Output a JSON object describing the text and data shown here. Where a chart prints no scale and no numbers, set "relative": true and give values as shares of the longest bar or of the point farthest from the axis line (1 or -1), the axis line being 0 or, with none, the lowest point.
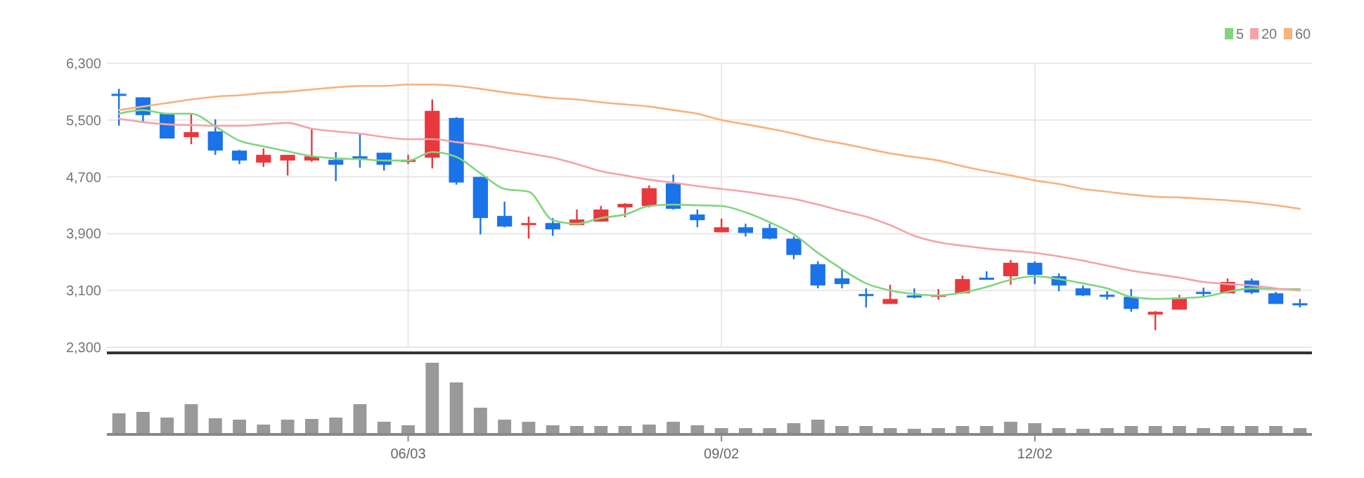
{
  "chart_data": [
    {
      "type": "candlestick",
      "categories": [
        null,
        null,
        null,
        null,
        null,
        null,
        null,
        null,
        null,
        null,
        null,
        null,
        null,
        null,
        null,
        null,
        null,
        null,
        null,
        null,
        null,
        null,
        null,
        null,
        null,
        null,
        null,
        null,
        null,
        null,
        null,
        null,
        null,
        null,
        null,
        null,
        null,
        null,
        null,
        null,
        null,
        null,
        null,
        null,
        null,
        null,
        null,
        null,
        null,
        null
      ],
      "ohlc": [
        [
          5870,
          5940,
          5420,
          5850
        ],
        [
          5820,
          5820,
          5470,
          5570
        ],
        [
          5590,
          5590,
          5240,
          5240
        ],
        [
          5260,
          5590,
          5160,
          5330
        ],
        [
          5340,
          5510,
          5010,
          5070
        ],
        [
          5070,
          5080,
          4880,
          4930
        ],
        [
          4900,
          5100,
          4840,
          5010
        ],
        [
          4930,
          5010,
          4720,
          5010
        ],
        [
          4930,
          5380,
          4910,
          4990
        ],
        [
          4940,
          5050,
          4640,
          4870
        ],
        [
          4990,
          5310,
          4830,
          4950
        ],
        [
          5040,
          5040,
          4790,
          4870
        ],
        [
          4930,
          5010,
          4880,
          4940
        ],
        [
          4970,
          5790,
          4820,
          5630
        ],
        [
          5530,
          5540,
          4590,
          4620
        ],
        [
          4700,
          4700,
          3890,
          4120
        ],
        [
          4150,
          4350,
          3990,
          4000
        ],
        [
          4040,
          4140,
          3830,
          4050
        ],
        [
          4050,
          4120,
          3870,
          3960
        ],
        [
          4020,
          4240,
          4020,
          4100
        ],
        [
          4070,
          4290,
          4070,
          4240
        ],
        [
          4270,
          4330,
          4130,
          4320
        ],
        [
          4290,
          4580,
          4270,
          4540
        ],
        [
          4610,
          4730,
          4240,
          4250
        ],
        [
          4170,
          4240,
          3990,
          4090
        ],
        [
          3920,
          4110,
          3920,
          3990
        ],
        [
          3990,
          4040,
          3860,
          3910
        ],
        [
          3980,
          4040,
          3820,
          3830
        ],
        [
          3830,
          3860,
          3540,
          3600
        ],
        [
          3470,
          3510,
          3130,
          3170
        ],
        [
          3270,
          3410,
          3130,
          3190
        ],
        [
          3050,
          3130,
          2860,
          3040
        ],
        [
          2910,
          3180,
          2910,
          2980
        ],
        [
          3030,
          3130,
          2990,
          3000
        ],
        [
          3030,
          3120,
          2970,
          3040
        ],
        [
          3060,
          3310,
          3060,
          3260
        ],
        [
          3280,
          3370,
          3250,
          3270
        ],
        [
          3300,
          3530,
          3180,
          3490
        ],
        [
          3490,
          3510,
          3190,
          3320
        ],
        [
          3300,
          3340,
          3090,
          3170
        ],
        [
          3130,
          3170,
          3020,
          3030
        ],
        [
          3040,
          3090,
          2970,
          3030
        ],
        [
          3010,
          3120,
          2800,
          2840
        ],
        [
          2760,
          2810,
          2540,
          2800
        ],
        [
          2830,
          3040,
          2830,
          3000
        ],
        [
          3080,
          3140,
          3010,
          3070
        ],
        [
          3060,
          3270,
          3060,
          3220
        ],
        [
          3240,
          3270,
          3050,
          3070
        ],
        [
          3060,
          3080,
          2910,
          2910
        ],
        [
          2920,
          2980,
          2860,
          2900
        ]
      ],
      "colors": [
        "#1a73e8",
        "#1a73e8",
        "#1a73e8",
        "#e8383d",
        "#1a73e8",
        "#1a73e8",
        "#e8383d",
        "#e8383d",
        "#e8383d",
        "#1a73e8",
        "#1a73e8",
        "#1a73e8",
        "#e8383d",
        "#e8383d",
        "#1a73e8",
        "#1a73e8",
        "#1a73e8",
        "#e8383d",
        "#1a73e8",
        "#e8383d",
        "#e8383d",
        "#e8383d",
        "#e8383d",
        "#1a73e8",
        "#1a73e8",
        "#e8383d",
        "#1a73e8",
        "#1a73e8",
        "#1a73e8",
        "#1a73e8",
        "#1a73e8",
        "#1a73e8",
        "#e8383d",
        "#1a73e8",
        "#e8383d",
        "#e8383d",
        "#1a73e8",
        "#e8383d",
        "#1a73e8",
        "#1a73e8",
        "#1a73e8",
        "#1a73e8",
        "#1a73e8",
        "#e8383d",
        "#e8383d",
        "#1a73e8",
        "#e8383d",
        "#1a73e8",
        "#1a73e8",
        "#1a73e8"
      ],
      "series": [
        {
          "type": "line",
          "name": "5",
          "color": "#7fd67f",
          "values": [
            5590,
            5640,
            5590,
            5590,
            5410,
            5210,
            5130,
            5060,
            4990,
            4960,
            4950,
            4930,
            4930,
            5050,
            4980,
            4750,
            4530,
            4490,
            4090,
            4040,
            4120,
            4170,
            4290,
            4310,
            4300,
            4290,
            4200,
            4060,
            3890,
            3630,
            3400,
            3200,
            3100,
            3050,
            3030,
            3070,
            3150,
            3250,
            3300,
            3260,
            3200,
            3130,
            3010,
            2980,
            2990,
            3010,
            3080,
            3130,
            3120,
            3120
          ]
        },
        {
          "type": "line",
          "name": "20",
          "color": "#f4a3a8",
          "values": [
            5520,
            5470,
            5440,
            5430,
            5420,
            5420,
            5440,
            5460,
            5380,
            5340,
            5310,
            5260,
            5230,
            5230,
            5190,
            5150,
            5090,
            5030,
            4970,
            4880,
            4780,
            4720,
            4660,
            4620,
            4570,
            4530,
            4490,
            4440,
            4390,
            4310,
            4220,
            4140,
            4020,
            3870,
            3780,
            3730,
            3690,
            3660,
            3630,
            3580,
            3520,
            3450,
            3380,
            3330,
            3280,
            3220,
            3190,
            3170,
            3130,
            3100
          ]
        },
        {
          "type": "line",
          "name": "60",
          "color": "#f7b27e",
          "values": [
            5640,
            5690,
            5740,
            5790,
            5830,
            5850,
            5880,
            5900,
            5930,
            5960,
            5980,
            5980,
            6000,
            6000,
            5980,
            5940,
            5890,
            5850,
            5810,
            5790,
            5750,
            5720,
            5690,
            5640,
            5590,
            5500,
            5440,
            5380,
            5310,
            5230,
            5170,
            5100,
            5030,
            4980,
            4930,
            4850,
            4780,
            4720,
            4650,
            4600,
            4530,
            4490,
            4450,
            4420,
            4410,
            4390,
            4370,
            4340,
            4300,
            4250
          ]
        }
      ],
      "ylim": [
        2300,
        6300
      ],
      "yticks": [
        {
          "value": 2300,
          "label": "2,300"
        },
        {
          "value": 3100,
          "label": "3,100"
        },
        {
          "value": 3900,
          "label": "3,900"
        },
        {
          "value": 4700,
          "label": "4,700"
        },
        {
          "value": 5500,
          "label": "5,500"
        },
        {
          "value": 6300,
          "label": "6,300"
        }
      ],
      "grid": true,
      "legend": "top right",
      "tick_labels": "y"
    },
    {
      "type": "bar",
      "categories": [
        null,
        null,
        null,
        null,
        null,
        null,
        null,
        null,
        null,
        null,
        null,
        null,
        "06/03",
        null,
        null,
        null,
        null,
        null,
        null,
        null,
        null,
        null,
        null,
        null,
        null,
        "09/02",
        null,
        null,
        null,
        null,
        null,
        null,
        null,
        null,
        null,
        null,
        null,
        null,
        "12/02",
        null,
        null,
        null,
        null,
        null,
        null,
        null,
        null,
        null,
        null,
        null
      ],
      "values": [
        0.28,
        0.3,
        0.22,
        0.41,
        0.21,
        0.19,
        0.12,
        0.19,
        0.2,
        0.22,
        0.41,
        0.16,
        0.11,
        1,
        0.72,
        0.36,
        0.19,
        0.16,
        0.11,
        0.1,
        0.1,
        0.1,
        0.12,
        0.16,
        0.11,
        0.07,
        0.07,
        0.07,
        0.14,
        0.19,
        0.1,
        0.1,
        0.07,
        0.06,
        0.07,
        0.1,
        0.1,
        0.16,
        0.14,
        0.07,
        0.06,
        0.07,
        0.1,
        0.1,
        0.1,
        0.07,
        0.1,
        0.1,
        0.1,
        0.07
      ],
      "color": "#999999",
      "relative": true,
      "tick_labels": "x"
    }
  ]
}
